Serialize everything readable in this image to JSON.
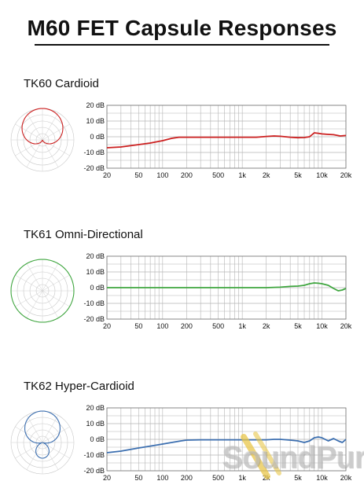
{
  "page": {
    "title": "M60 FET Capsule Responses"
  },
  "watermark": {
    "text": "SoundPure"
  },
  "colors": {
    "cardioid": "#cc1f1f",
    "omni": "#3fa63f",
    "hyper": "#3c6fb0",
    "grid": "#b4b4b4",
    "watermark_accent": "#e8c64a"
  },
  "chart_data": [
    {
      "type": "line",
      "title": "TK60 Cardioid",
      "xscale": "log",
      "xlim": [
        20,
        20000
      ],
      "ylim": [
        -20,
        20
      ],
      "grid": true,
      "y_ticks": [
        20,
        10,
        0,
        -10,
        -20
      ],
      "y_tick_labels": [
        "20 dB",
        "10 dB",
        "0 dB",
        "-10 dB",
        "-20 dB"
      ],
      "x_ticks": [
        20,
        50,
        100,
        200,
        500,
        1000,
        2000,
        5000,
        10000,
        20000
      ],
      "x_tick_labels": [
        "20",
        "50",
        "100",
        "200",
        "500",
        "1k",
        "2k",
        "5k",
        "10k",
        "20k"
      ],
      "polar_pattern": "cardioid",
      "series": [
        {
          "color": "#cc1f1f",
          "x": [
            20,
            30,
            50,
            70,
            100,
            130,
            160,
            200,
            300,
            500,
            1000,
            1500,
            2000,
            2500,
            3000,
            4000,
            5000,
            6000,
            7000,
            8000,
            9000,
            10000,
            12000,
            14000,
            17000,
            20000
          ],
          "y": [
            -7,
            -6.5,
            -5,
            -4,
            -2.5,
            -1,
            -0.3,
            -0.3,
            -0.3,
            -0.3,
            -0.3,
            -0.3,
            0.2,
            0.5,
            0.3,
            -0.3,
            -0.6,
            -0.5,
            0,
            2.5,
            2.2,
            1.8,
            1.5,
            1.3,
            0.5,
            0.8
          ]
        }
      ]
    },
    {
      "type": "line",
      "title": "TK61 Omni-Directional",
      "xscale": "log",
      "xlim": [
        20,
        20000
      ],
      "ylim": [
        -20,
        20
      ],
      "grid": true,
      "y_ticks": [
        20,
        10,
        0,
        -10,
        -20
      ],
      "y_tick_labels": [
        "20 dB",
        "10 dB",
        "0 dB",
        "-10 dB",
        "-20 dB"
      ],
      "x_ticks": [
        20,
        50,
        100,
        200,
        500,
        1000,
        2000,
        5000,
        10000,
        20000
      ],
      "x_tick_labels": [
        "20",
        "50",
        "100",
        "200",
        "500",
        "1k",
        "2k",
        "5k",
        "10k",
        "20k"
      ],
      "polar_pattern": "omni",
      "series": [
        {
          "color": "#3fa63f",
          "x": [
            20,
            50,
            100,
            200,
            500,
            1000,
            2000,
            3000,
            4000,
            5000,
            6000,
            7000,
            8000,
            9000,
            10000,
            12000,
            14000,
            16000,
            18000,
            20000
          ],
          "y": [
            0,
            0,
            0,
            0,
            0,
            0,
            0,
            0.3,
            0.8,
            1,
            1.5,
            2.5,
            3,
            2.8,
            2.5,
            1.5,
            -0.5,
            -2,
            -1.5,
            -0.5
          ]
        }
      ]
    },
    {
      "type": "line",
      "title": "TK62 Hyper-Cardioid",
      "xscale": "log",
      "xlim": [
        20,
        20000
      ],
      "ylim": [
        -20,
        20
      ],
      "grid": true,
      "y_ticks": [
        20,
        10,
        0,
        -10,
        -20
      ],
      "y_tick_labels": [
        "20 dB",
        "10 dB",
        "0 dB",
        "-10 dB",
        "-20 dB"
      ],
      "x_ticks": [
        20,
        50,
        100,
        200,
        500,
        1000,
        2000,
        5000,
        10000,
        20000
      ],
      "x_tick_labels": [
        "20",
        "50",
        "100",
        "200",
        "500",
        "1k",
        "2k",
        "5k",
        "10k",
        "20k"
      ],
      "polar_pattern": "hypercardioid",
      "series": [
        {
          "color": "#3c6fb0",
          "x": [
            20,
            30,
            50,
            70,
            100,
            130,
            170,
            200,
            300,
            500,
            1000,
            1500,
            2000,
            2500,
            3000,
            4000,
            5000,
            6000,
            7000,
            8000,
            9000,
            10000,
            12000,
            14000,
            16000,
            18000,
            20000
          ],
          "y": [
            -8.5,
            -7.5,
            -5.5,
            -4.3,
            -3,
            -2,
            -1,
            -0.5,
            -0.3,
            -0.3,
            -0.3,
            -0.3,
            -0.3,
            0,
            0,
            -0.5,
            -1,
            -2,
            -1,
            1,
            1.5,
            1,
            -1,
            0.5,
            -1,
            -2,
            0
          ]
        }
      ]
    }
  ]
}
